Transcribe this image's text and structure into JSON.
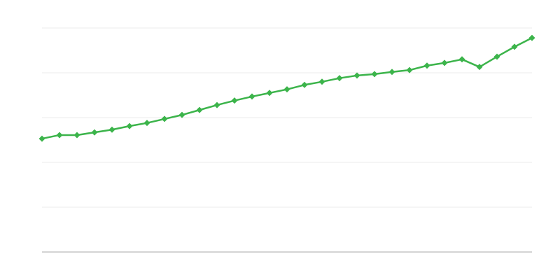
{
  "chart_data": {
    "type": "line",
    "title": "",
    "xlabel": "",
    "ylabel": "",
    "x": [
      1,
      2,
      3,
      4,
      5,
      6,
      7,
      8,
      9,
      10,
      11,
      12,
      13,
      14,
      15,
      16,
      17,
      18,
      19,
      20,
      21,
      22,
      23,
      24,
      25,
      26,
      27,
      28,
      29
    ],
    "series": [
      {
        "values": [
          2.53,
          2.61,
          2.61,
          2.67,
          2.73,
          2.81,
          2.88,
          2.97,
          3.06,
          3.17,
          3.28,
          3.38,
          3.47,
          3.55,
          3.63,
          3.73,
          3.8,
          3.88,
          3.94,
          3.97,
          4.02,
          4.06,
          4.16,
          4.22,
          4.3,
          4.13,
          4.36,
          4.58,
          4.78
        ],
        "color": "#3cb44b",
        "marker": "diamond"
      }
    ],
    "xlim": [
      1,
      29
    ],
    "ylim": [
      0,
      5
    ],
    "grid": true,
    "gridlines_y": [
      0,
      1,
      2,
      3,
      4,
      5
    ],
    "legend": "none",
    "colors": {
      "grid": "#ebebeb",
      "axis": "#aaaaaa"
    }
  }
}
